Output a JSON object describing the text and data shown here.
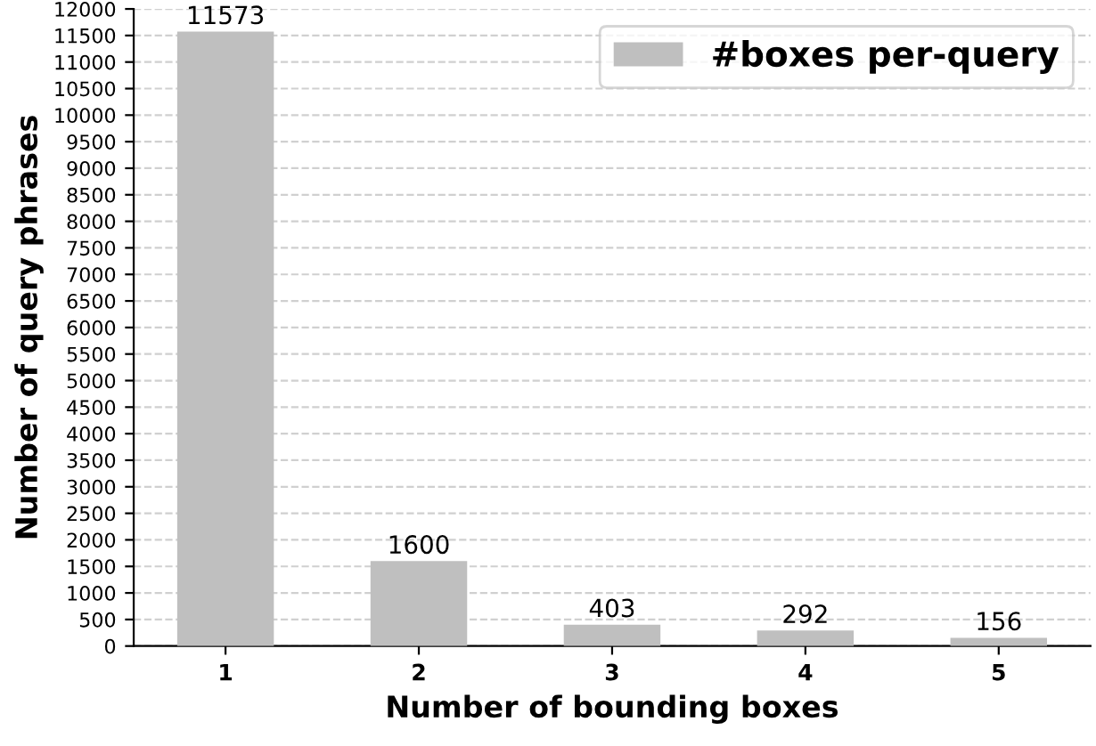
{
  "chart_data": {
    "type": "bar",
    "xlabel": "Number of bounding boxes",
    "ylabel": "Number of query phrases",
    "categories": [
      "1",
      "2",
      "3",
      "4",
      "5"
    ],
    "series": [
      {
        "name": "#boxes per-query",
        "color": "#bfbfbf",
        "values": [
          11573,
          1600,
          403,
          292,
          156
        ]
      }
    ],
    "ylim": [
      0,
      12000
    ],
    "yticks": [
      0,
      500,
      1000,
      1500,
      2000,
      2500,
      3000,
      3500,
      4000,
      4500,
      5000,
      5500,
      6000,
      6500,
      7000,
      7500,
      8000,
      8500,
      9000,
      9500,
      10000,
      10500,
      11000,
      11500,
      12000
    ],
    "grid": "y",
    "legend": "top right",
    "data_labels": true
  }
}
